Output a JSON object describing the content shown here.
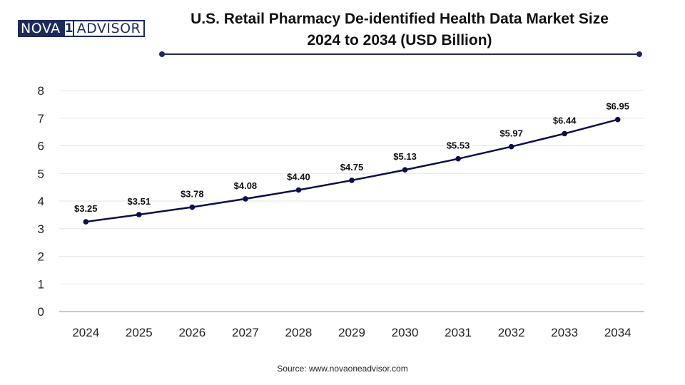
{
  "logo": {
    "part1": "NOVA",
    "part2": "1",
    "part3": "ADVISOR"
  },
  "title_line1": "U.S. Retail Pharmacy De-identified Health Data Market Size",
  "title_line2": "2024 to 2034 (USD Billion)",
  "source": "Source: www.novaoneadvisor.com",
  "colors": {
    "line": "#0d0d4a",
    "accent": "#1f2a5c",
    "grid": "#e6e6e6"
  },
  "chart_data": {
    "type": "line",
    "title": "U.S. Retail Pharmacy De-identified Health Data Market Size 2024 to 2034 (USD Billion)",
    "x": [
      "2024",
      "2025",
      "2026",
      "2027",
      "2028",
      "2029",
      "2030",
      "2031",
      "2032",
      "2033",
      "2034"
    ],
    "series": [
      {
        "values": [
          3.25,
          3.51,
          3.78,
          4.08,
          4.4,
          4.75,
          5.13,
          5.53,
          5.97,
          6.44,
          6.95
        ],
        "labels": [
          "$3.25",
          "$3.51",
          "$3.78",
          "$4.08",
          "$4.40",
          "$4.75",
          "$5.13",
          "$5.53",
          "$5.97",
          "$6.44",
          "$6.95"
        ]
      }
    ],
    "y_ticks": [
      "0",
      "1",
      "2",
      "3",
      "4",
      "5",
      "6",
      "7",
      "8"
    ],
    "ylim": [
      0,
      8
    ],
    "xlabel": "",
    "ylabel": "",
    "grid": true,
    "legend": "none"
  }
}
